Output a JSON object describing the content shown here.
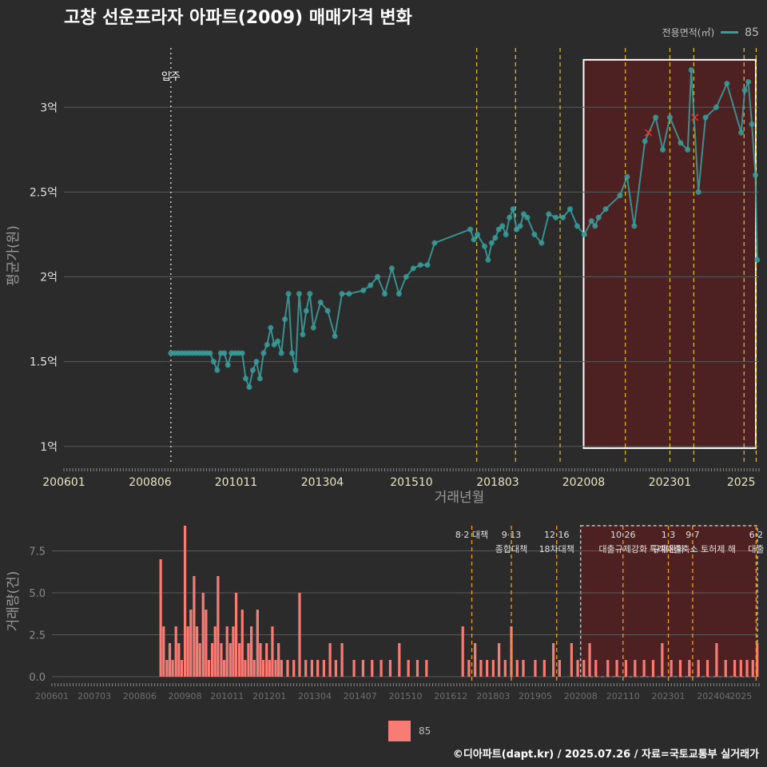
{
  "title": "고창 선운프라자 아파트(2009) 매매가격 변화",
  "legend_top": {
    "label": "전용면적(㎡)",
    "value": "85"
  },
  "legend_bottom": {
    "value": "85"
  },
  "footer": "©디아파트(dapt.kr) / 2025.07.26 / 자료=국토교통부 실거래가",
  "colors": {
    "price": "#3a9c9a",
    "volume": "#f87b74",
    "policy": "#e6c229",
    "highlight": "#5a1f1f",
    "background": "#2b2b2b"
  },
  "chart_data": [
    {
      "type": "line",
      "xlabel": "거래년월",
      "ylabel": "평균가(원)",
      "ylim": [
        0.9,
        3.35
      ],
      "xlim": [
        2006.0,
        2025.5
      ],
      "x_ticks": [
        {
          "x": 2006.0,
          "label": "200601"
        },
        {
          "x": 2008.42,
          "label": "200806"
        },
        {
          "x": 2010.83,
          "label": "201011"
        },
        {
          "x": 2013.25,
          "label": "201304"
        },
        {
          "x": 2015.75,
          "label": "201510"
        },
        {
          "x": 2018.17,
          "label": "201803"
        },
        {
          "x": 2020.58,
          "label": "202008"
        },
        {
          "x": 2023.0,
          "label": "202301"
        },
        {
          "x": 2025.0,
          "label": "2025"
        }
      ],
      "y_ticks": [
        {
          "y": 1.0,
          "label": "1억"
        },
        {
          "y": 1.5,
          "label": "1.5억"
        },
        {
          "y": 2.0,
          "label": "2억"
        },
        {
          "y": 2.5,
          "label": "2.5억"
        },
        {
          "y": 3.0,
          "label": "3억"
        }
      ],
      "move_in": {
        "x": 2009.0,
        "label": "입주"
      },
      "policy_x": [
        2017.58,
        2018.67,
        2019.92,
        2021.75,
        2023.0,
        2023.67,
        2025.08,
        2025.42
      ],
      "highlight": {
        "x0": 2020.58,
        "x1": 2025.5,
        "y0": 0.99,
        "y1": 3.28
      },
      "series": [
        {
          "name": "85",
          "x": [
            2009.0,
            2009.1,
            2009.2,
            2009.3,
            2009.4,
            2009.5,
            2009.6,
            2009.7,
            2009.8,
            2009.9,
            2010.0,
            2010.1,
            2010.2,
            2010.3,
            2010.4,
            2010.5,
            2010.6,
            2010.7,
            2010.8,
            2010.9,
            2011.0,
            2011.1,
            2011.2,
            2011.3,
            2011.4,
            2011.5,
            2011.6,
            2011.7,
            2011.8,
            2011.9,
            2012.0,
            2012.1,
            2012.2,
            2012.3,
            2012.4,
            2012.5,
            2012.6,
            2012.7,
            2012.8,
            2012.9,
            2013.0,
            2013.2,
            2013.4,
            2013.6,
            2013.8,
            2014.0,
            2014.4,
            2014.6,
            2014.8,
            2015.0,
            2015.2,
            2015.4,
            2015.6,
            2015.8,
            2016.0,
            2016.2,
            2016.4,
            2017.4,
            2017.5,
            2017.6,
            2017.8,
            2017.9,
            2018.0,
            2018.1,
            2018.2,
            2018.3,
            2018.4,
            2018.5,
            2018.6,
            2018.7,
            2018.8,
            2018.9,
            2019.0,
            2019.2,
            2019.4,
            2019.6,
            2019.8,
            2020.0,
            2020.2,
            2020.4,
            2020.6,
            2020.8,
            2020.9,
            2021.0,
            2021.2,
            2021.6,
            2021.8,
            2022.0,
            2022.3,
            2022.6,
            2022.8,
            2023.0,
            2023.3,
            2023.5,
            2023.6,
            2023.8,
            2024.0,
            2024.3,
            2024.6,
            2025.0,
            2025.1,
            2025.2,
            2025.3,
            2025.4,
            2025.45
          ],
          "y": [
            1.55,
            1.55,
            1.55,
            1.55,
            1.55,
            1.55,
            1.55,
            1.55,
            1.55,
            1.55,
            1.55,
            1.55,
            1.5,
            1.45,
            1.55,
            1.55,
            1.48,
            1.55,
            1.55,
            1.55,
            1.55,
            1.4,
            1.35,
            1.45,
            1.5,
            1.4,
            1.55,
            1.6,
            1.7,
            1.6,
            1.62,
            1.55,
            1.75,
            1.9,
            1.55,
            1.45,
            1.9,
            1.66,
            1.8,
            1.9,
            1.7,
            1.85,
            1.8,
            1.65,
            1.9,
            1.9,
            1.92,
            1.95,
            2.0,
            1.9,
            2.05,
            1.9,
            2.0,
            2.05,
            2.07,
            2.07,
            2.2,
            2.28,
            2.22,
            2.25,
            2.18,
            2.1,
            2.2,
            2.23,
            2.28,
            2.3,
            2.25,
            2.35,
            2.4,
            2.28,
            2.3,
            2.37,
            2.35,
            2.25,
            2.2,
            2.37,
            2.35,
            2.35,
            2.4,
            2.3,
            2.25,
            2.33,
            2.3,
            2.35,
            2.4,
            2.48,
            2.59,
            2.3,
            2.8,
            2.94,
            2.75,
            2.94,
            2.79,
            2.75,
            3.22,
            2.5,
            2.94,
            3.0,
            3.14,
            2.85,
            3.1,
            3.15,
            2.9,
            2.6,
            2.1
          ]
        }
      ],
      "markers_x": [
        {
          "x": 2022.4,
          "y": 2.85
        },
        {
          "x": 2023.7,
          "y": 2.94
        }
      ]
    },
    {
      "type": "bar",
      "ylabel": "거래량(건)",
      "ylim": [
        0,
        9
      ],
      "xlim": [
        2006.0,
        2025.5
      ],
      "x_ticks": [
        {
          "x": 2006.0,
          "label": "200601"
        },
        {
          "x": 2007.17,
          "label": "200703"
        },
        {
          "x": 2008.42,
          "label": "200806"
        },
        {
          "x": 2009.67,
          "label": "200908"
        },
        {
          "x": 2010.83,
          "label": "201011"
        },
        {
          "x": 2012.0,
          "label": "201201"
        },
        {
          "x": 2013.25,
          "label": "201304"
        },
        {
          "x": 2014.5,
          "label": "201407"
        },
        {
          "x": 2015.75,
          "label": "201510"
        },
        {
          "x": 2017.0,
          "label": "201612"
        },
        {
          "x": 2018.17,
          "label": "201803"
        },
        {
          "x": 2019.33,
          "label": "201905"
        },
        {
          "x": 2020.58,
          "label": "202008"
        },
        {
          "x": 2021.75,
          "label": "202110"
        },
        {
          "x": 2023.0,
          "label": "202301"
        },
        {
          "x": 2024.25,
          "label": "202404"
        },
        {
          "x": 2025.0,
          "label": "2025"
        }
      ],
      "y_ticks": [
        {
          "y": 0.0,
          "label": "0.0"
        },
        {
          "y": 2.5,
          "label": "2.5"
        },
        {
          "y": 5.0,
          "label": "5.0"
        },
        {
          "y": 7.5,
          "label": "7.5"
        }
      ],
      "annotations": [
        {
          "x": 2017.58,
          "line1": "8·2 대책",
          "line2": ""
        },
        {
          "x": 2018.67,
          "line1": "9·13",
          "line2": "종합대책"
        },
        {
          "x": 2019.92,
          "line1": "12·16",
          "line2": "18차대책"
        },
        {
          "x": 2021.75,
          "line1": "10·26",
          "line2": "대출규제강화"
        },
        {
          "x": 2023.0,
          "line1": "1·3",
          "line2": "규제완화"
        },
        {
          "x": 2023.67,
          "line1": "9·7",
          "line2": "특례대출축소 토허제 해"
        },
        {
          "x": 2025.42,
          "line1": "6·2",
          "line2": "대출"
        }
      ],
      "highlight": {
        "x0": 2020.58,
        "x1": 2025.5,
        "y0": 0,
        "y1": 9
      },
      "series": [
        {
          "name": "85",
          "x": [
            2009.0,
            2009.08,
            2009.17,
            2009.25,
            2009.33,
            2009.42,
            2009.5,
            2009.58,
            2009.67,
            2009.75,
            2009.83,
            2009.92,
            2010.0,
            2010.08,
            2010.17,
            2010.25,
            2010.33,
            2010.42,
            2010.5,
            2010.58,
            2010.67,
            2010.75,
            2010.83,
            2010.92,
            2011.0,
            2011.08,
            2011.17,
            2011.25,
            2011.33,
            2011.42,
            2011.5,
            2011.58,
            2011.67,
            2011.75,
            2011.83,
            2011.92,
            2012.0,
            2012.08,
            2012.17,
            2012.25,
            2012.33,
            2012.5,
            2012.67,
            2012.83,
            2013.0,
            2013.17,
            2013.33,
            2013.5,
            2013.67,
            2013.83,
            2014.0,
            2014.33,
            2014.58,
            2014.83,
            2015.08,
            2015.33,
            2015.58,
            2015.83,
            2016.08,
            2016.33,
            2017.33,
            2017.5,
            2017.67,
            2017.83,
            2018.0,
            2018.17,
            2018.33,
            2018.5,
            2018.67,
            2018.83,
            2019.0,
            2019.33,
            2019.58,
            2019.83,
            2020.0,
            2020.33,
            2020.5,
            2020.67,
            2020.83,
            2021.0,
            2021.33,
            2021.58,
            2021.83,
            2022.08,
            2022.33,
            2022.58,
            2022.83,
            2023.08,
            2023.33,
            2023.58,
            2023.83,
            2024.08,
            2024.33,
            2024.58,
            2024.83,
            2025.0,
            2025.17,
            2025.33,
            2025.45
          ],
          "y": [
            7,
            3,
            1,
            2,
            1,
            3,
            2,
            1,
            9,
            3,
            4,
            6,
            3,
            2,
            5,
            4,
            1,
            2,
            3,
            6,
            2,
            1,
            3,
            2,
            3,
            5,
            2,
            4,
            1,
            2,
            3,
            1,
            4,
            2,
            1,
            2,
            1,
            3,
            1,
            2,
            1,
            1,
            1,
            5,
            1,
            1,
            1,
            1,
            2,
            1,
            2,
            1,
            1,
            1,
            1,
            1,
            2,
            1,
            1,
            1,
            3,
            1,
            2,
            1,
            1,
            1,
            2,
            1,
            3,
            1,
            1,
            1,
            1,
            2,
            1,
            2,
            1,
            1,
            2,
            1,
            1,
            1,
            1,
            1,
            1,
            1,
            2,
            1,
            1,
            1,
            1,
            1,
            2,
            1,
            1,
            1,
            1,
            1,
            2
          ]
        }
      ]
    }
  ]
}
